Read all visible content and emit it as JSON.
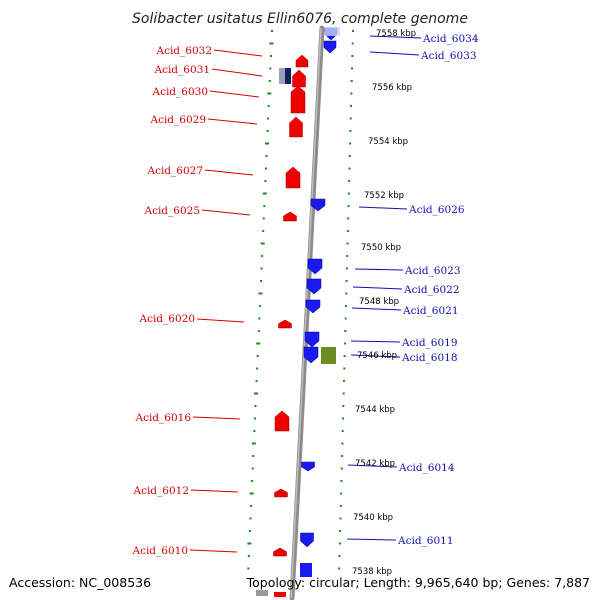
{
  "title": "Solibacter usitatus Ellin6076, complete genome",
  "footer": {
    "accession": "Accession: NC_008536",
    "topology": "Topology: circular; Length: 9,965,640 bp; Genes: 7,887"
  },
  "colors": {
    "left_strand": "#ee0000",
    "right_strand": "#1a1aee",
    "olive_feature": "#6b8e23",
    "gray_feature": "#9aa0b8",
    "ruler_dots": "#1a8a1a",
    "backbone": "#8c8c8c",
    "left_label": "#d40000",
    "right_label": "#1010b0"
  },
  "kbp_ticks": [
    {
      "label": "7558 kbp",
      "pos": 7558
    },
    {
      "label": "7556 kbp",
      "pos": 7556
    },
    {
      "label": "7554 kbp",
      "pos": 7554
    },
    {
      "label": "7552 kbp",
      "pos": 7552
    },
    {
      "label": "7550 kbp",
      "pos": 7550
    },
    {
      "label": "7548 kbp",
      "pos": 7548
    },
    {
      "label": "7546 kbp",
      "pos": 7546
    },
    {
      "label": "7544 kbp",
      "pos": 7544
    },
    {
      "label": "7542 kbp",
      "pos": 7542
    },
    {
      "label": "7540 kbp",
      "pos": 7540
    },
    {
      "label": "7538 kbp",
      "pos": 7538
    }
  ],
  "left_genes": [
    {
      "label": "Acid_6032"
    },
    {
      "label": "Acid_6031"
    },
    {
      "label": "Acid_6030"
    },
    {
      "label": "Acid_6029"
    },
    {
      "label": "Acid_6027"
    },
    {
      "label": "Acid_6025"
    },
    {
      "label": "Acid_6020"
    },
    {
      "label": "Acid_6016"
    },
    {
      "label": "Acid_6012"
    },
    {
      "label": "Acid_6010"
    }
  ],
  "right_genes": [
    {
      "label": "Acid_6034"
    },
    {
      "label": "Acid_6033"
    },
    {
      "label": "Acid_6026"
    },
    {
      "label": "Acid_6023"
    },
    {
      "label": "Acid_6022"
    },
    {
      "label": "Acid_6021"
    },
    {
      "label": "Acid_6019"
    },
    {
      "label": "Acid_6018"
    },
    {
      "label": "Acid_6014"
    },
    {
      "label": "Acid_6011"
    }
  ]
}
